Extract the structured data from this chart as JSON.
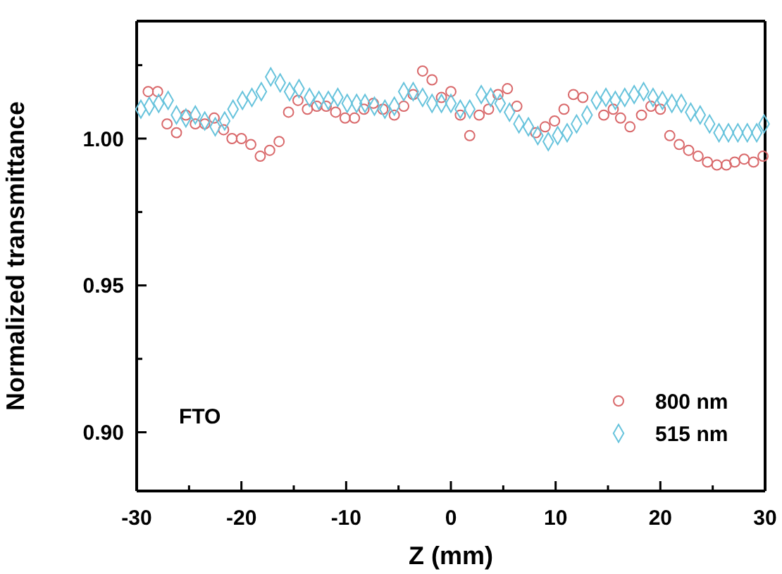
{
  "chart_data": {
    "type": "scatter",
    "xlabel": "Z (mm)",
    "ylabel": "Normalized transmittance",
    "annotations": [
      "FTO"
    ],
    "xlim": [
      -30,
      30
    ],
    "ylim": [
      0.88,
      1.04
    ],
    "xticks": [
      -30,
      {
        "value": -25,
        "label": null
      },
      -20,
      {
        "value": -15,
        "label": null
      },
      -10,
      {
        "value": -5,
        "label": null
      },
      0,
      {
        "value": 5,
        "label": null
      },
      10,
      {
        "value": 15,
        "label": null
      },
      20,
      {
        "value": 25,
        "label": null
      },
      30
    ],
    "yticks": [
      {
        "value": 0.9,
        "label": "0.90"
      },
      {
        "value": 0.925,
        "label": null
      },
      {
        "value": 0.95,
        "label": "0.95"
      },
      {
        "value": 0.975,
        "label": null
      },
      {
        "value": 1,
        "label": "1.00"
      },
      {
        "value": 1.025,
        "label": null
      }
    ],
    "legend": "bottom right",
    "grid": false,
    "series": [
      {
        "name": "800 nm",
        "color": "#d9686a",
        "marker": "circle",
        "x": [
          -28.9,
          -28,
          -27.1,
          -26.2,
          -25.3,
          -24.4,
          -23.5,
          -22.6,
          -21.7,
          -20.9,
          -20,
          -19.1,
          -18.2,
          -17.3,
          -16.4,
          -15.5,
          -14.6,
          -13.7,
          -12.8,
          -11.9,
          -11,
          -10.1,
          -9.2,
          -8.3,
          -7.4,
          -6.5,
          -5.4,
          -4.5,
          -3.6,
          -2.7,
          -1.8,
          -0.9,
          0,
          0.9,
          1.8,
          2.7,
          3.6,
          4.5,
          5.4,
          6.3,
          8.1,
          9,
          9.9,
          10.8,
          11.7,
          12.6,
          14.6,
          15.5,
          16.2,
          17.1,
          18.2,
          19.1,
          20,
          20.9,
          21.8,
          22.7,
          23.6,
          24.5,
          25.4,
          26.3,
          27.1,
          28,
          28.9,
          29.8
        ],
        "values": [
          1.016,
          1.016,
          1.005,
          1.002,
          1.008,
          1.005,
          1.005,
          1.007,
          1.003,
          1.0,
          1.0,
          0.998,
          0.994,
          0.996,
          0.999,
          1.009,
          1.013,
          1.01,
          1.011,
          1.011,
          1.009,
          1.007,
          1.007,
          1.01,
          1.012,
          1.01,
          1.008,
          1.011,
          1.015,
          1.023,
          1.02,
          1.014,
          1.016,
          1.008,
          1.001,
          1.008,
          1.01,
          1.015,
          1.017,
          1.011,
          1.002,
          1.004,
          1.006,
          1.01,
          1.015,
          1.014,
          1.008,
          1.01,
          1.007,
          1.004,
          1.008,
          1.011,
          1.01,
          1.001,
          0.998,
          0.996,
          0.994,
          0.992,
          0.991,
          0.991,
          0.992,
          0.993,
          0.992,
          0.994
        ]
      },
      {
        "name": "515 nm",
        "color": "#67c3dc",
        "marker": "diamond",
        "x": [
          -29.6,
          -28.8,
          -27.9,
          -27,
          -26.2,
          -25.3,
          -24.4,
          -23.5,
          -22.5,
          -21.6,
          -20.8,
          -19.9,
          -19,
          -18.1,
          -17.2,
          -16.3,
          -15.4,
          -14.5,
          -13.5,
          -12.6,
          -11.7,
          -10.8,
          -9.9,
          -9,
          -8.2,
          -7.3,
          -6.3,
          -5.4,
          -4.5,
          -3.6,
          -2.7,
          -1.8,
          -0.9,
          0,
          0.9,
          1.8,
          2.9,
          3.8,
          4.7,
          5.6,
          6.5,
          7.4,
          8.3,
          9.3,
          10.2,
          11.1,
          12,
          13,
          13.9,
          14.8,
          15.7,
          16.6,
          17.5,
          18.4,
          19.3,
          20.2,
          21.1,
          22,
          22.9,
          23.8,
          24.7,
          25.6,
          26.5,
          27.4,
          28.3,
          29.2,
          29.9
        ],
        "values": [
          1.01,
          1.011,
          1.012,
          1.013,
          1.008,
          1.007,
          1.008,
          1.006,
          1.004,
          1.006,
          1.01,
          1.013,
          1.014,
          1.016,
          1.021,
          1.019,
          1.016,
          1.017,
          1.014,
          1.013,
          1.013,
          1.014,
          1.012,
          1.012,
          1.012,
          1.011,
          1.01,
          1.011,
          1.016,
          1.016,
          1.014,
          1.012,
          1.012,
          1.012,
          1.01,
          1.01,
          1.015,
          1.014,
          1.012,
          1.009,
          1.005,
          1.004,
          1.001,
          0.999,
          1.001,
          1.002,
          1.005,
          1.008,
          1.013,
          1.014,
          1.013,
          1.014,
          1.015,
          1.016,
          1.014,
          1.013,
          1.012,
          1.012,
          1.009,
          1.008,
          1.005,
          1.002,
          1.002,
          1.002,
          1.002,
          1.002,
          1.005
        ]
      }
    ]
  }
}
